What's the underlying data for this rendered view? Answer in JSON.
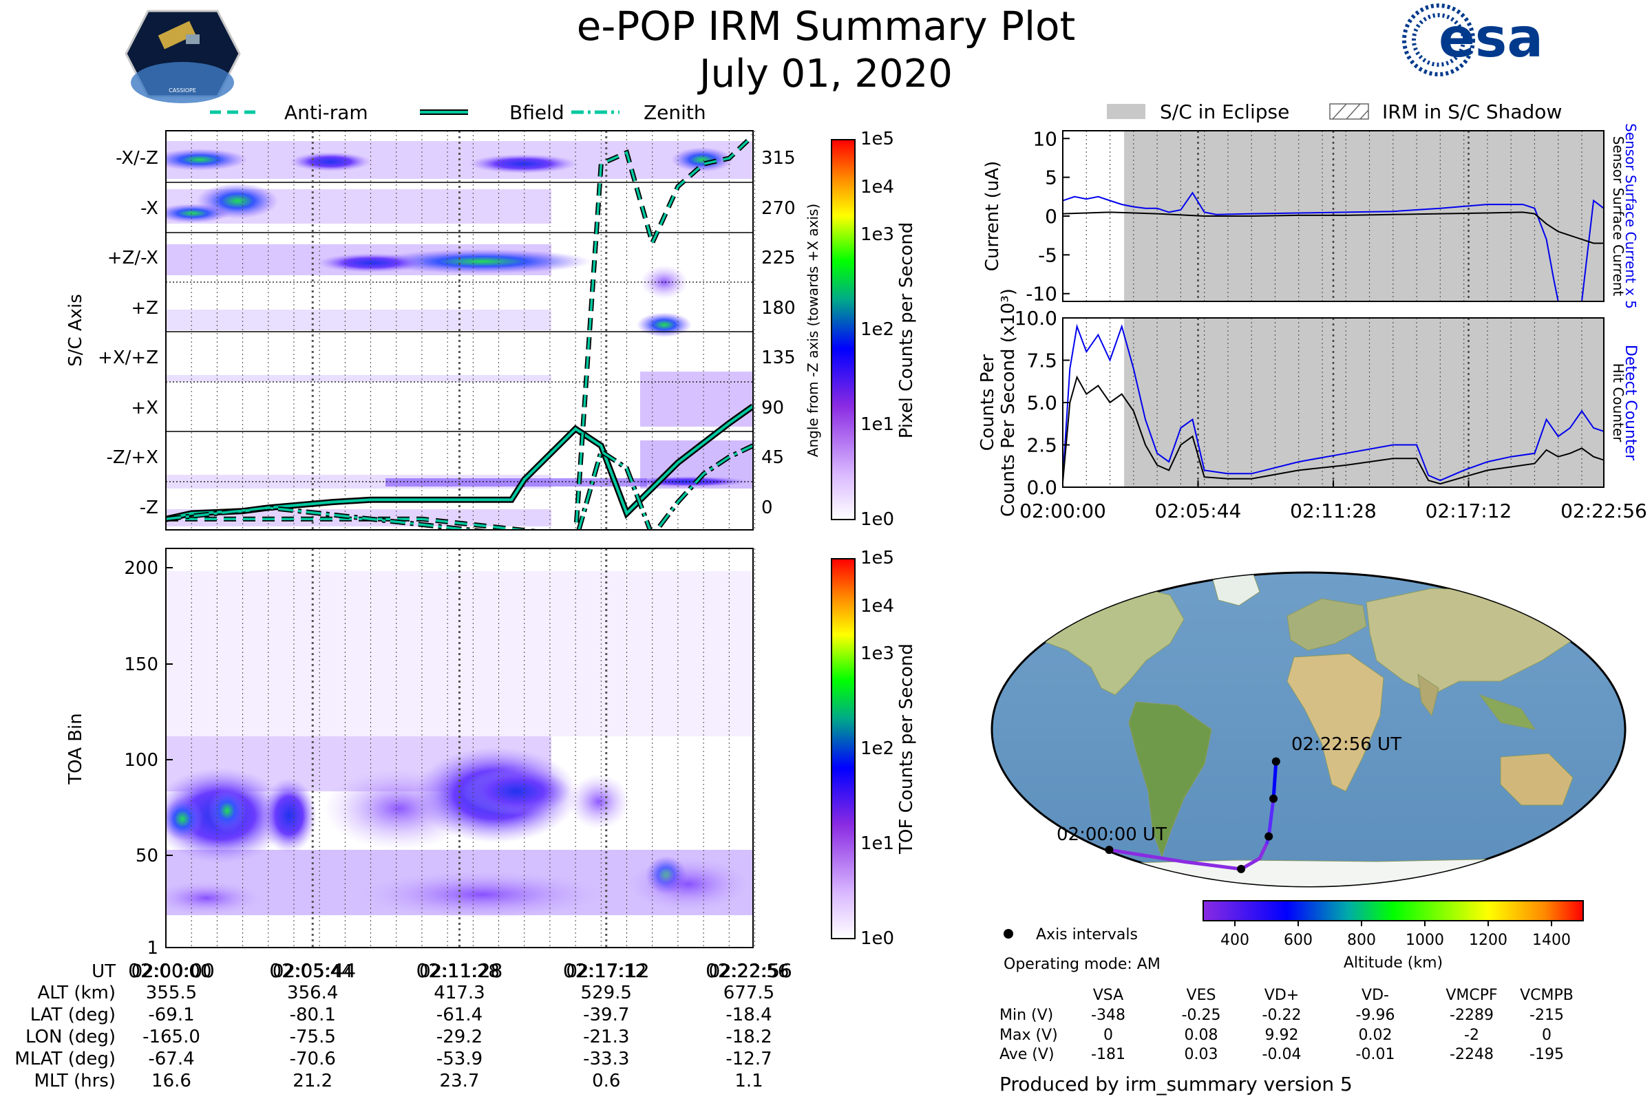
{
  "header": {
    "title": "e-POP IRM Summary Plot",
    "date": "July 01, 2020",
    "logo_left_text": "CASSIOPE",
    "logo_right_text": "esa"
  },
  "colors": {
    "accent_teal": "#00c8a0",
    "current_blue": "#0000ee",
    "eclipse_gray": "#c8c8c8",
    "trajectory_dot": "#000000"
  },
  "top_legend": [
    {
      "label": "Anti-ram",
      "style": "dashed"
    },
    {
      "label": "Bfield",
      "style": "solid"
    },
    {
      "label": "Zenith",
      "style": "dashdot"
    }
  ],
  "right_legend": [
    {
      "label": "S/C in Eclipse",
      "style": "gray-fill"
    },
    {
      "label": "IRM in S/C Shadow",
      "style": "hatched"
    }
  ],
  "time_ticks": [
    "02:00:00",
    "02:05:44",
    "02:11:28",
    "02:17:12",
    "02:22:56"
  ],
  "chart_data": [
    {
      "id": "sc-axis-spectrogram",
      "type": "heatmap",
      "ylabel": "S/C Axis",
      "y_categories": [
        "-X/-Z",
        "-X",
        "+Z/-X",
        "+Z",
        "+X/+Z",
        "+X",
        "-Z/+X",
        "-Z"
      ],
      "right_axis_label": "Angle from -Z axis (towards +X axis)",
      "right_ticks": [
        "315",
        "270",
        "225",
        "180",
        "135",
        "90",
        "45",
        "0"
      ],
      "colorbar_label": "Pixel Counts per Second",
      "colorbar_ticks": [
        "1e5",
        "1e4",
        "1e3",
        "1e2",
        "1e1",
        "1e0"
      ],
      "series": [
        {
          "name": "Bfield",
          "style": "solid",
          "t_min": [
            0,
            1,
            3,
            4,
            6.5,
            8,
            8.9,
            9.3,
            9.6,
            10.2,
            10.6,
            11,
            11.5,
            12,
            13.5,
            14,
            16,
            17,
            18,
            20,
            22,
            22.93
          ],
          "angle_deg": [
            -5,
            0,
            2,
            5,
            10,
            12,
            12,
            12,
            12,
            12,
            12,
            12,
            12,
            12,
            12,
            30,
            75,
            60,
            0,
            45,
            80,
            95
          ]
        },
        {
          "name": "Anti-ram",
          "style": "dashed",
          "t_min": [
            0,
            4,
            10,
            16,
            17,
            18,
            19,
            20,
            21,
            22,
            22.93
          ],
          "angle_deg": [
            -5,
            -5,
            -5,
            -20,
            310,
            320,
            240,
            290,
            310,
            315,
            335
          ]
        },
        {
          "name": "Zenith",
          "style": "dashdot",
          "t_min": [
            0,
            4,
            10,
            16,
            17,
            18,
            19,
            20,
            21,
            22,
            22.93
          ],
          "angle_deg": [
            -5,
            5,
            -10,
            -25,
            55,
            40,
            -20,
            10,
            35,
            50,
            60
          ]
        }
      ]
    },
    {
      "id": "toa-spectrogram",
      "type": "heatmap",
      "ylabel": "TOA Bin",
      "y_ticks": [
        "200",
        "150",
        "100",
        "50",
        "1"
      ],
      "colorbar_label": "TOF Counts per Second",
      "colorbar_ticks": [
        "1e5",
        "1e4",
        "1e3",
        "1e2",
        "1e1",
        "1e0"
      ]
    },
    {
      "id": "current-plot",
      "type": "line",
      "ylabel": "Current (uA)",
      "ylim": [
        -11,
        11
      ],
      "y_ticks": [
        "10",
        "5",
        "0",
        "-5",
        "-10"
      ],
      "right_labels": [
        "Sensor Surface Current x 5",
        "Sensor Surface Current"
      ],
      "eclipse_start_t_min": 2.6,
      "series": [
        {
          "name": "Sensor Surface Current x 5",
          "color": "blue",
          "t_min": [
            0,
            0.5,
            1,
            1.5,
            2,
            2.5,
            3,
            3.5,
            4,
            4.5,
            5,
            5.5,
            6,
            6.5,
            8,
            10,
            12,
            14,
            16,
            18,
            18.5,
            19.5,
            20,
            20.5,
            20.8,
            21,
            21.5,
            22,
            22.5,
            22.93
          ],
          "values": [
            2,
            2.5,
            2.2,
            2.5,
            2,
            1.5,
            1.2,
            1,
            1,
            0.5,
            0.8,
            3,
            0.5,
            0.2,
            0.3,
            0.4,
            0.5,
            0.6,
            1,
            1.5,
            1.5,
            1.5,
            1,
            -3,
            -8,
            -11,
            -11,
            -11,
            2,
            1
          ]
        },
        {
          "name": "Sensor Surface Current",
          "color": "black",
          "t_min": [
            0,
            2,
            4,
            6,
            8,
            10,
            12,
            14,
            16,
            18,
            19.5,
            20,
            20.5,
            21,
            21.5,
            22,
            22.5,
            22.93
          ],
          "values": [
            0.3,
            0.5,
            0.3,
            0,
            0,
            0.1,
            0.1,
            0.2,
            0.3,
            0.4,
            0.5,
            0.3,
            -1,
            -2,
            -2.5,
            -3,
            -3.5,
            -3.5
          ]
        }
      ]
    },
    {
      "id": "counts-plot",
      "type": "line",
      "ylabel": "Counts Per Second (x10³)",
      "ylim": [
        0,
        10
      ],
      "y_ticks": [
        "10.0",
        "7.5",
        "5.0",
        "2.5",
        "0.0"
      ],
      "right_labels": [
        "Detect Counter",
        "Hit Counter"
      ],
      "eclipse_start_t_min": 2.6,
      "series": [
        {
          "name": "Detect Counter",
          "color": "blue",
          "t_min": [
            0,
            0.3,
            0.6,
            1,
            1.5,
            2,
            2.5,
            3,
            3.5,
            4,
            4.5,
            5,
            5.5,
            6,
            7,
            8,
            10,
            12,
            14,
            15,
            15.5,
            16,
            17,
            18,
            19,
            20,
            20.5,
            21,
            21.5,
            22,
            22.5,
            22.93
          ],
          "values": [
            0.5,
            7,
            9.5,
            8,
            9,
            7.5,
            9.5,
            7,
            4,
            2,
            1.5,
            3.5,
            4,
            1,
            0.8,
            0.8,
            1.5,
            2,
            2.5,
            2.5,
            0.7,
            0.4,
            1,
            1.5,
            1.8,
            2,
            4,
            3,
            3.5,
            4.5,
            3.5,
            3.3
          ]
        },
        {
          "name": "Hit Counter",
          "color": "black",
          "t_min": [
            0,
            0.3,
            0.6,
            1,
            1.5,
            2,
            2.5,
            3,
            3.5,
            4,
            4.5,
            5,
            5.5,
            6,
            7,
            8,
            10,
            12,
            14,
            15,
            15.5,
            16,
            17,
            18,
            19,
            20,
            20.5,
            21,
            21.5,
            22,
            22.5,
            22.93
          ],
          "values": [
            0.3,
            5,
            6.5,
            5.5,
            6,
            5,
            5.5,
            4.5,
            2.5,
            1.3,
            1,
            2.5,
            3,
            0.6,
            0.5,
            0.5,
            1,
            1.3,
            1.7,
            1.7,
            0.4,
            0.2,
            0.6,
            1,
            1.2,
            1.4,
            2.2,
            1.8,
            2,
            2.3,
            1.8,
            1.6
          ]
        }
      ]
    }
  ],
  "map": {
    "start_label": "02:00:00 UT",
    "end_label": "02:22:56 UT",
    "track": [
      {
        "lon": -165.0,
        "lat": -69.1
      },
      {
        "lon": -120.0,
        "lat": -76.0
      },
      {
        "lon": -75.5,
        "lat": -80.1
      },
      {
        "lon": -45.0,
        "lat": -74.0
      },
      {
        "lon": -32.0,
        "lat": -65.0
      },
      {
        "lon": -29.2,
        "lat": -61.4
      },
      {
        "lon": -21.3,
        "lat": -39.7
      },
      {
        "lon": -18.2,
        "lat": -18.4
      }
    ],
    "axis_interval_points": [
      {
        "lon": -75.5,
        "lat": -80.1
      },
      {
        "lon": -29.2,
        "lat": -61.4
      },
      {
        "lon": -21.3,
        "lat": -39.7
      },
      {
        "lon": -18.2,
        "lat": -18.4
      },
      {
        "lon": -165.0,
        "lat": -69.1
      }
    ],
    "altitude_colorbar": {
      "label": "Altitude (km)",
      "range": [
        300,
        1500
      ],
      "ticks": [
        "400",
        "600",
        "800",
        "1000",
        "1200",
        "1400"
      ]
    }
  },
  "legend_text": {
    "axis_intervals": "Axis intervals",
    "operating_mode": "Operating mode: AM"
  },
  "ephemeris": {
    "row_labels": [
      "UT",
      "ALT (km)",
      "LAT (deg)",
      "LON (deg)",
      "MLAT (deg)",
      "MLT (hrs)"
    ],
    "columns": [
      {
        "UT": "02:00:00",
        "ALT (km)": "355.5",
        "LAT (deg)": "-69.1",
        "LON (deg)": "-165.0",
        "MLAT (deg)": "-67.4",
        "MLT (hrs)": "16.6"
      },
      {
        "UT": "02:05:44",
        "ALT (km)": "356.4",
        "LAT (deg)": "-80.1",
        "LON (deg)": "-75.5",
        "MLAT (deg)": "-70.6",
        "MLT (hrs)": "21.2"
      },
      {
        "UT": "02:11:28",
        "ALT (km)": "417.3",
        "LAT (deg)": "-61.4",
        "LON (deg)": "-29.2",
        "MLAT (deg)": "-53.9",
        "MLT (hrs)": "23.7"
      },
      {
        "UT": "02:17:12",
        "ALT (km)": "529.5",
        "LAT (deg)": "-39.7",
        "LON (deg)": "-21.3",
        "MLAT (deg)": "-33.3",
        "MLT (hrs)": "0.6"
      },
      {
        "UT": "02:22:56",
        "ALT (km)": "677.5",
        "LAT (deg)": "-18.4",
        "LON (deg)": "-18.2",
        "MLAT (deg)": "-12.7",
        "MLT (hrs)": "1.1"
      }
    ]
  },
  "voltage_table": {
    "columns": [
      "VSA",
      "VES",
      "VD+",
      "VD-",
      "VMCPF",
      "VCMPB"
    ],
    "rows": [
      {
        "label": "Min (V)",
        "values": [
          "-348",
          "-0.25",
          "-0.22",
          "-9.96",
          "-2289",
          "-215"
        ]
      },
      {
        "label": "Max (V)",
        "values": [
          "0",
          "0.08",
          "9.92",
          "0.02",
          "-2",
          "0"
        ]
      },
      {
        "label": "Ave (V)",
        "values": [
          "-181",
          "0.03",
          "-0.04",
          "-0.01",
          "-2248",
          "-195"
        ]
      }
    ]
  },
  "footer": "Produced by irm_summary version 5"
}
